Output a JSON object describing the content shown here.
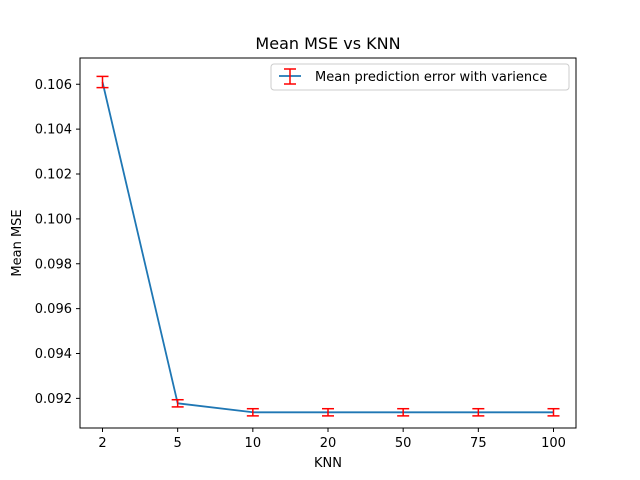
{
  "chart_data": {
    "type": "line",
    "title": "Mean MSE vs KNN",
    "xlabel": "KNN",
    "ylabel": "Mean MSE",
    "categories": [
      "2",
      "5",
      "10",
      "20",
      "50",
      "75",
      "100"
    ],
    "series": [
      {
        "name": "Mean prediction error with varience",
        "values": [
          0.1061,
          0.09178,
          0.09138,
          0.09138,
          0.09138,
          0.09138,
          0.09138
        ],
        "error": [
          0.00025,
          0.00016,
          0.00016,
          0.00016,
          0.00016,
          0.00016,
          0.00016
        ],
        "line_color": "#1f77b4",
        "error_color": "#ff0000"
      }
    ],
    "yticks": [
      "0.092",
      "0.094",
      "0.096",
      "0.098",
      "0.100",
      "0.102",
      "0.104",
      "0.106"
    ],
    "ylim": [
      0.09068,
      0.10717
    ],
    "grid": false,
    "legend_position": "top-right"
  }
}
